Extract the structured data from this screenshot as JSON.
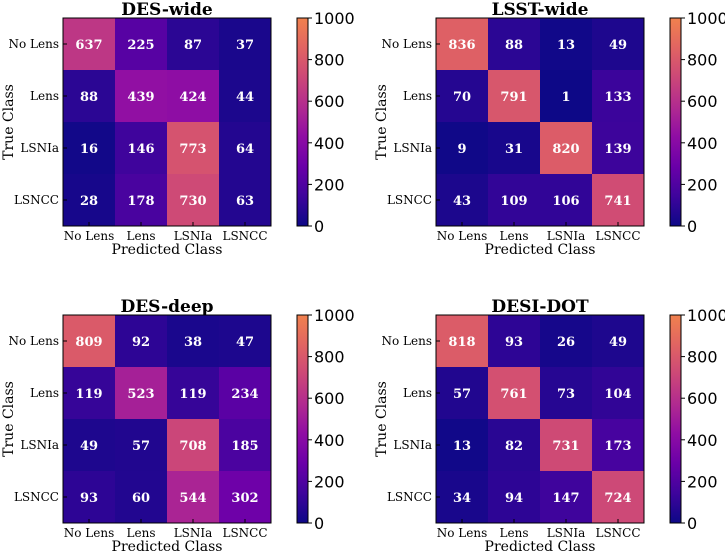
{
  "chart_data": [
    {
      "type": "heatmap",
      "title": "DES-wide",
      "xlabel": "Predicted Class",
      "ylabel": "True Class",
      "x_categories": [
        "No Lens",
        "Lens",
        "LSNIa",
        "LSNCC"
      ],
      "y_categories": [
        "No Lens",
        "Lens",
        "LSNIa",
        "LSNCC"
      ],
      "values": [
        [
          637,
          225,
          87,
          37
        ],
        [
          88,
          439,
          424,
          44
        ],
        [
          16,
          146,
          773,
          64
        ],
        [
          28,
          178,
          730,
          63
        ]
      ],
      "colorbar": {
        "range": [
          0,
          1000
        ],
        "ticks": [
          0,
          200,
          400,
          600,
          800,
          1000
        ]
      }
    },
    {
      "type": "heatmap",
      "title": "LSST-wide",
      "xlabel": "Predicted Class",
      "ylabel": "True Class",
      "x_categories": [
        "No Lens",
        "Lens",
        "LSNIa",
        "LSNCC"
      ],
      "y_categories": [
        "No Lens",
        "Lens",
        "LSNIa",
        "LSNCC"
      ],
      "values": [
        [
          836,
          88,
          13,
          49
        ],
        [
          70,
          791,
          1,
          133
        ],
        [
          9,
          31,
          820,
          139
        ],
        [
          43,
          109,
          106,
          741
        ]
      ],
      "colorbar": {
        "range": [
          0,
          1000
        ],
        "ticks": [
          0,
          200,
          400,
          600,
          800,
          1000
        ]
      }
    },
    {
      "type": "heatmap",
      "title": "DES-deep",
      "xlabel": "Predicted Class",
      "ylabel": "True Class",
      "x_categories": [
        "No Lens",
        "Lens",
        "LSNIa",
        "LSNCC"
      ],
      "y_categories": [
        "No Lens",
        "Lens",
        "LSNIa",
        "LSNCC"
      ],
      "values": [
        [
          809,
          92,
          38,
          47
        ],
        [
          119,
          523,
          119,
          234
        ],
        [
          49,
          57,
          708,
          185
        ],
        [
          93,
          60,
          544,
          302
        ]
      ],
      "colorbar": {
        "range": [
          0,
          1000
        ],
        "ticks": [
          0,
          200,
          400,
          600,
          800,
          1000
        ]
      }
    },
    {
      "type": "heatmap",
      "title": "DESI-DOT",
      "xlabel": "Predicted Class",
      "ylabel": "True Class",
      "x_categories": [
        "No Lens",
        "Lens",
        "LSNIa",
        "LSNCC"
      ],
      "y_categories": [
        "No Lens",
        "Lens",
        "LSNIa",
        "LSNCC"
      ],
      "values": [
        [
          818,
          93,
          26,
          49
        ],
        [
          57,
          761,
          73,
          104
        ],
        [
          13,
          82,
          731,
          173
        ],
        [
          34,
          94,
          147,
          724
        ]
      ],
      "colorbar": {
        "range": [
          0,
          1000
        ],
        "ticks": [
          0,
          200,
          400,
          600,
          800,
          1000
        ]
      }
    }
  ],
  "colormap": {
    "name": "plasma-truncated",
    "stops": [
      "#0d0887",
      "#3e049c",
      "#6a00a8",
      "#8f0da4",
      "#b12a90",
      "#cc4778",
      "#e16462",
      "#f0814e"
    ]
  }
}
